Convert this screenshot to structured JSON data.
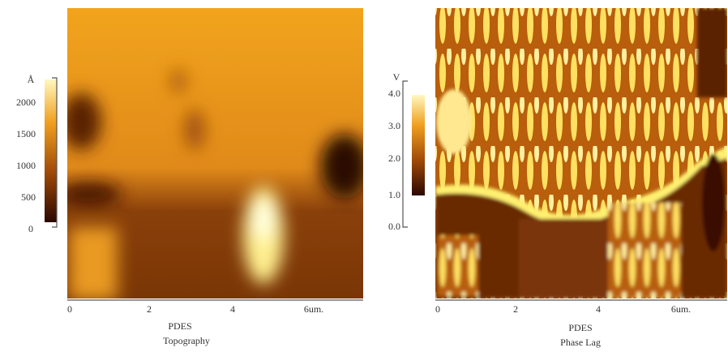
{
  "panels": [
    {
      "sample": "PDES",
      "caption": "Topography",
      "unit": "Å",
      "scale_ticks": [
        "2000",
        "1500",
        "1000",
        "500",
        "0"
      ],
      "x_ticks": [
        "0",
        "2",
        "4",
        "6um."
      ]
    },
    {
      "sample": "PDES",
      "caption": "Phase Lag",
      "unit": "V",
      "scale_ticks": [
        "4.0",
        "3.0",
        "2.0",
        "1.0",
        "0.0"
      ],
      "x_ticks": [
        "0",
        "2",
        "4",
        "6um."
      ]
    }
  ]
}
